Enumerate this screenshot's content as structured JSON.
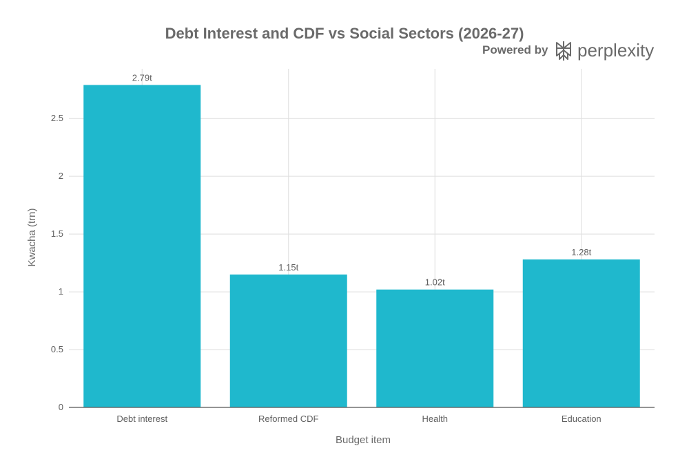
{
  "header": {
    "powered_by": "Powered by",
    "brand_name": "perplexity"
  },
  "chart_data": {
    "type": "bar",
    "title": "Debt Interest and CDF vs Social Sectors (2026-27)",
    "xlabel": "Budget item",
    "ylabel": "Kwacha (trn)",
    "categories": [
      "Debt interest",
      "Reformed CDF",
      "Health",
      "Education"
    ],
    "values": [
      2.79,
      1.15,
      1.02,
      1.28
    ],
    "value_labels": [
      "2.79t",
      "1.15t",
      "1.02t",
      "1.28t"
    ],
    "ylim": [
      0,
      2.93
    ],
    "yticks": [
      0,
      0.5,
      1,
      1.5,
      2,
      2.5
    ],
    "ytick_labels": [
      "0",
      "0.5",
      "1",
      "1.5",
      "2",
      "2.5"
    ],
    "grid": true,
    "bar_color": "#1fb8cd",
    "grid_color": "#dedede",
    "axis_color": "#555555"
  }
}
